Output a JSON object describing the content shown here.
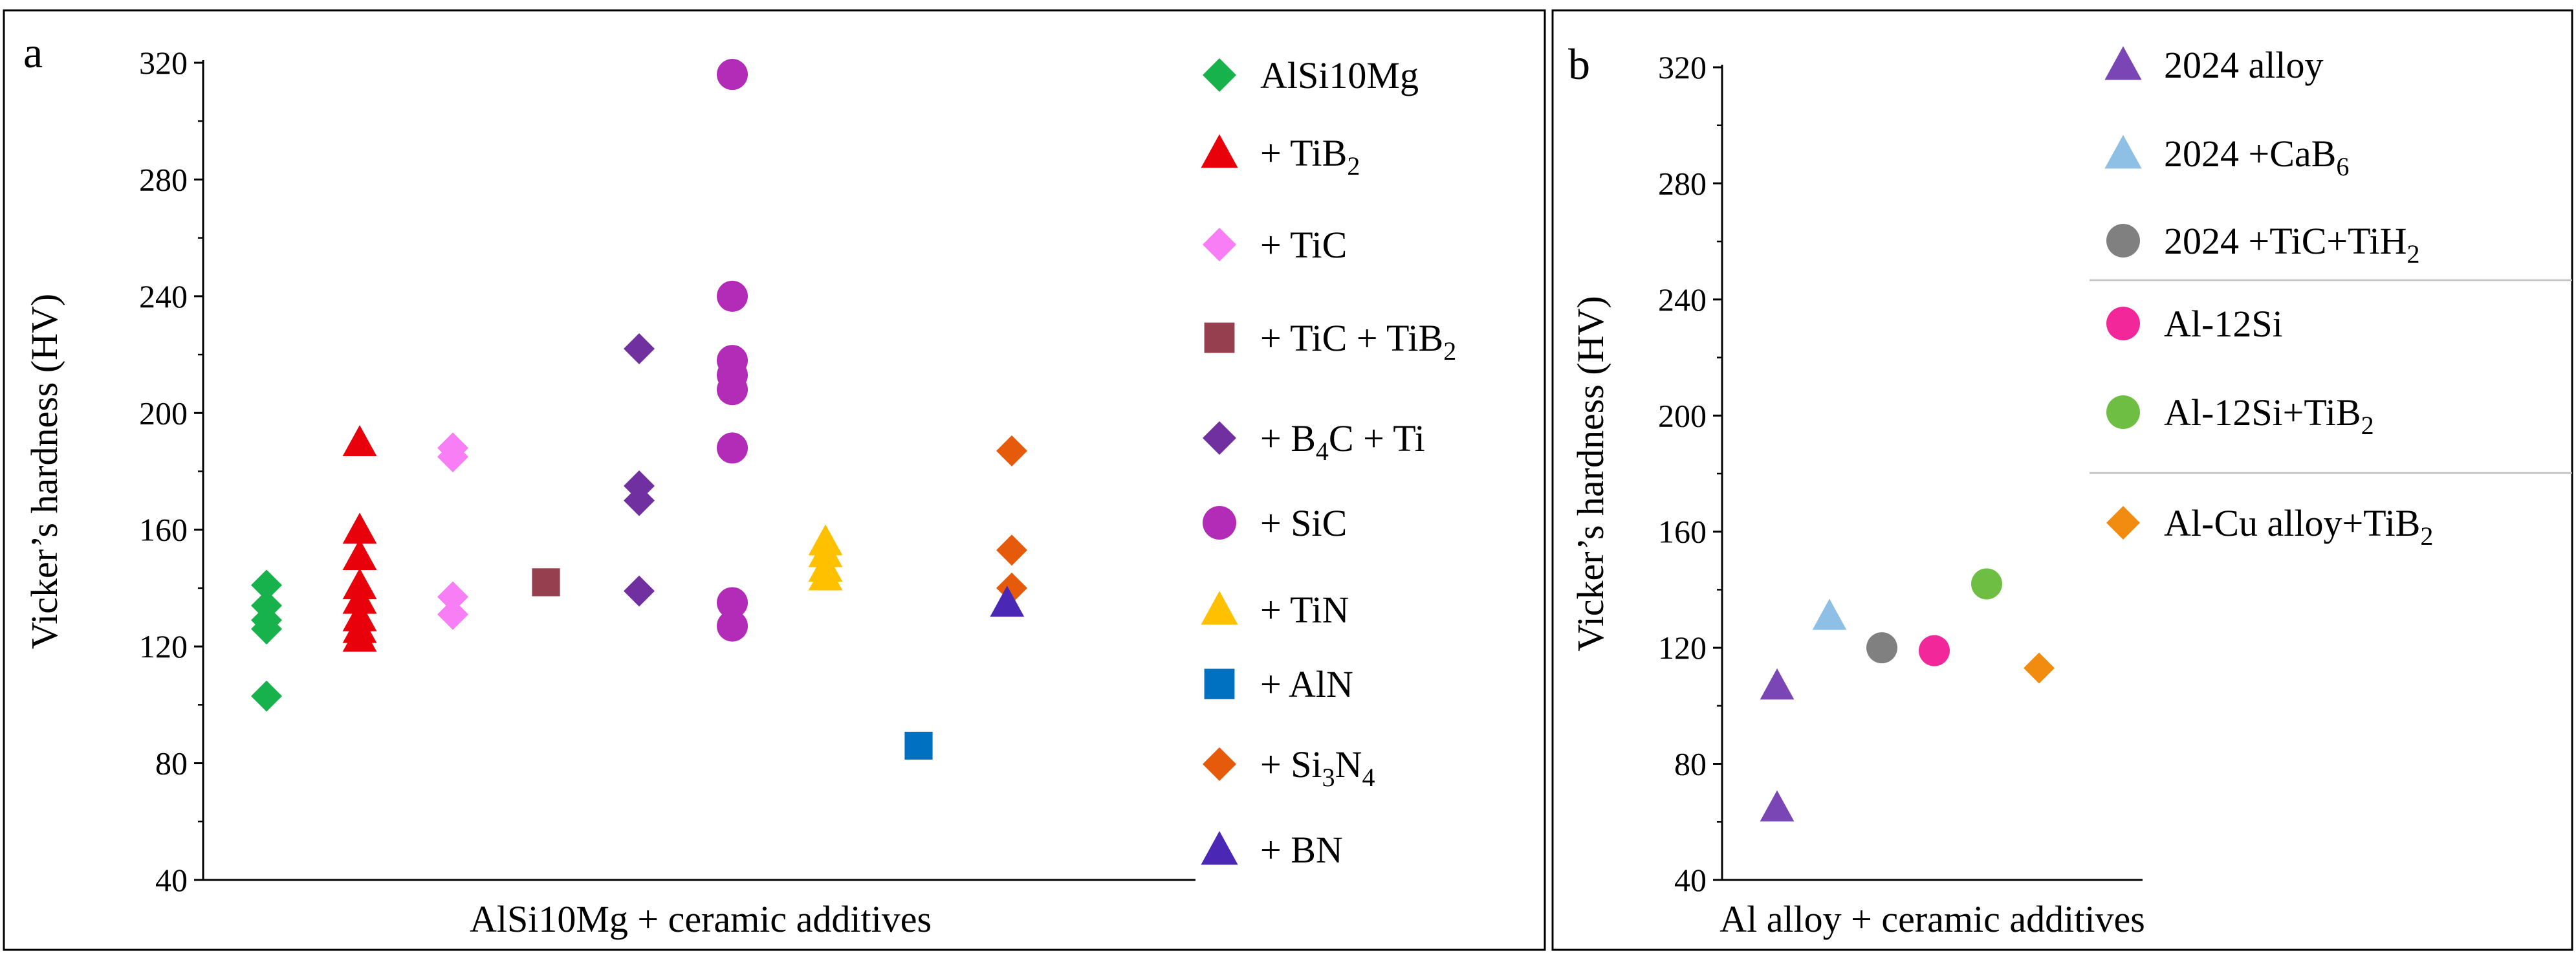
{
  "chart_data": [
    {
      "panel": "a",
      "type": "scatter",
      "xlabel": "AlSi10Mg + ceramic additives",
      "ylabel": "Vicker’s hardness (HV)",
      "ylim": [
        40,
        320
      ],
      "yticks": [
        40,
        80,
        120,
        160,
        200,
        240,
        280,
        320
      ],
      "legend": "right",
      "series": [
        {
          "name": "AlSi10Mg",
          "marker": "diamond",
          "color": "#17b24b",
          "x": 1,
          "values": [
            103,
            126,
            129,
            134,
            141
          ]
        },
        {
          "name": "+ TiB",
          "sub": "2",
          "marker": "triangle",
          "color": "#e8000b",
          "x": 2,
          "values": [
            123,
            126,
            130,
            136,
            141,
            151,
            160,
            190
          ]
        },
        {
          "name": "+ TiC",
          "marker": "diamond",
          "color": "#f77ef5",
          "x": 3,
          "values": [
            131,
            137,
            185,
            188
          ]
        },
        {
          "name": "+ TiC + TiB",
          "sub": "2",
          "marker": "square",
          "color": "#953f4f",
          "x": 4,
          "values": [
            142
          ]
        },
        {
          "name": "+ B",
          "sub": "4",
          "tail": "C + Ti",
          "marker": "diamond",
          "color": "#7030a0",
          "x": 5,
          "values": [
            139,
            170,
            175,
            222
          ]
        },
        {
          "name": "+ SiC",
          "marker": "circle",
          "color": "#b22cb7",
          "x": 6,
          "values": [
            127,
            135,
            188,
            208,
            213,
            218,
            240,
            316
          ]
        },
        {
          "name": "+ TiN",
          "marker": "triangle",
          "color": "#ffc000",
          "x": 7,
          "values": [
            144,
            147,
            152,
            156
          ]
        },
        {
          "name": "+ AlN",
          "marker": "square",
          "color": "#0070c0",
          "x": 8,
          "values": [
            86
          ]
        },
        {
          "name": "+ Si",
          "sub": "3",
          "tail": "N",
          "sub2": "4",
          "marker": "diamond",
          "color": "#e55b0b",
          "x": 9,
          "values": [
            140,
            153,
            187
          ]
        },
        {
          "name": "+ BN",
          "marker": "triangle",
          "color": "#4a27b5",
          "x": 8.95,
          "values": [
            135
          ]
        }
      ]
    },
    {
      "panel": "b",
      "type": "scatter",
      "xlabel": "Al alloy + ceramic additives",
      "ylabel": "Vicker’s hardness (HV)",
      "ylim": [
        40,
        320
      ],
      "yticks": [
        40,
        80,
        120,
        160,
        200,
        240,
        280,
        320
      ],
      "legend": "right",
      "series": [
        {
          "name": "2024 alloy",
          "marker": "triangle",
          "color": "#7a46b5",
          "x": 1,
          "values": [
            65,
            107
          ]
        },
        {
          "name": "2024 +CaB",
          "sub": "6",
          "marker": "triangle",
          "color": "#8ec0e6",
          "x": 2,
          "values": [
            131
          ]
        },
        {
          "name": "2024 +TiC+TiH",
          "sub": "2",
          "marker": "circle",
          "color": "#808080",
          "x": 3,
          "values": [
            120
          ]
        },
        {
          "name": "Al-12Si",
          "marker": "circle",
          "color": "#f2279a",
          "x": 4,
          "values": [
            119
          ]
        },
        {
          "name": "Al-12Si+TiB",
          "sub": "2",
          "marker": "circle",
          "color": "#6fbe44",
          "x": 5,
          "values": [
            142
          ]
        },
        {
          "name": "Al-Cu alloy+TiB",
          "sub": "2",
          "marker": "diamond",
          "color": "#f28c10",
          "x": 6,
          "values": [
            113
          ]
        }
      ]
    }
  ]
}
